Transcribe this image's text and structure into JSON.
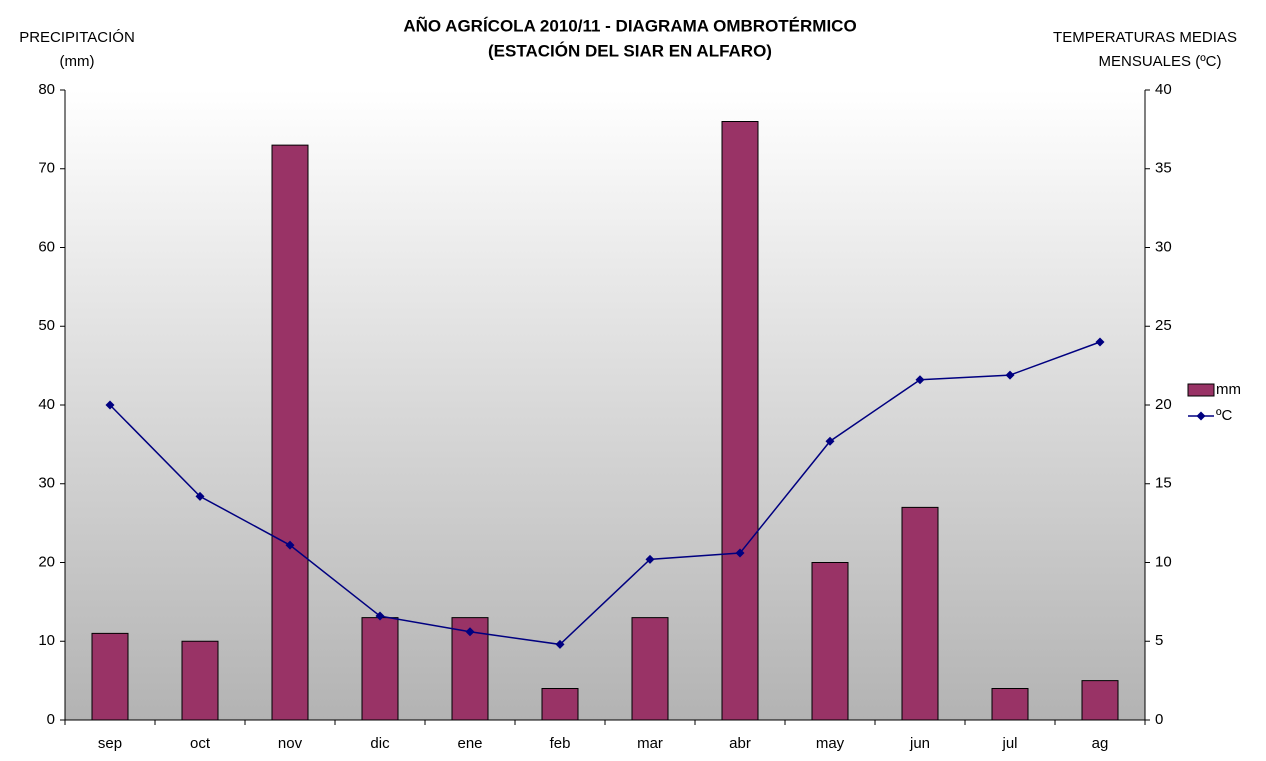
{
  "chart_data": {
    "type": "bar_line",
    "title": "AÑO AGRÍCOLA 2010/11 - DIAGRAMA OMBROTÉRMICO",
    "subtitle": "(ESTACIÓN DEL SIAR EN  ALFARO)",
    "ylabel": [
      "PRECIPITACIÓN",
      "(mm)"
    ],
    "y2label": [
      "TEMPERATURAS MEDIAS",
      "MENSUALES  (ºC)"
    ],
    "categories": [
      "sep",
      "oct",
      "nov",
      "dic",
      "ene",
      "feb",
      "mar",
      "abr",
      "may",
      "jun",
      "jul",
      "ag"
    ],
    "series": [
      {
        "name": "mm",
        "type": "bar",
        "color": "#993366",
        "values": [
          11,
          10,
          73,
          13,
          13,
          4,
          13,
          76,
          20,
          27,
          4,
          5
        ]
      },
      {
        "name": "ºC",
        "type": "line",
        "axis": "y2",
        "color": "#000080",
        "values": [
          20.0,
          14.2,
          11.1,
          6.6,
          5.6,
          4.8,
          10.2,
          10.6,
          17.7,
          21.6,
          21.9,
          24.0
        ]
      }
    ],
    "ylim": [
      0,
      80
    ],
    "yticks": [
      0,
      10,
      20,
      30,
      40,
      50,
      60,
      70,
      80
    ],
    "y2lim": [
      0,
      40
    ],
    "y2ticks": [
      0,
      5,
      10,
      15,
      20,
      25,
      30,
      35,
      40
    ],
    "legend": "right"
  }
}
